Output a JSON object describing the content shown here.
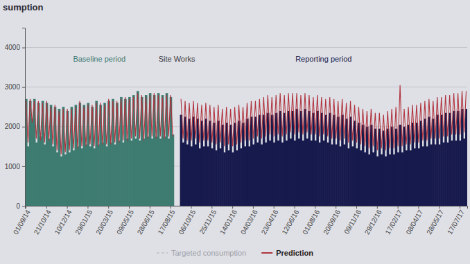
{
  "chart_data": {
    "type": "bar",
    "title": "sumption",
    "annotations": [
      "Baseline period",
      "Site Works",
      "Reporting period"
    ],
    "legend": "bottom",
    "grid": true,
    "ylim": [
      0,
      4500
    ],
    "yticks": [
      0,
      1000,
      2000,
      3000,
      4000
    ],
    "categories": [
      "01/09/14",
      null,
      null,
      null,
      null,
      null,
      null,
      null,
      null,
      null,
      "21/10/14",
      null,
      null,
      null,
      null,
      null,
      null,
      null,
      null,
      null,
      "10/12/14",
      null,
      null,
      null,
      null,
      null,
      null,
      null,
      null,
      null,
      "29/01/15",
      null,
      null,
      null,
      null,
      null,
      null,
      null,
      null,
      null,
      "20/03/15",
      null,
      null,
      null,
      null,
      null,
      null,
      null,
      null,
      null,
      "09/05/15",
      null,
      null,
      null,
      null,
      null,
      null,
      null,
      null,
      null,
      "28/06/15",
      null,
      null,
      null,
      null,
      null,
      null,
      null,
      null,
      null,
      "17/08/15",
      null,
      null,
      null,
      null,
      null,
      null,
      null,
      null,
      null,
      "06/10/15",
      null,
      null,
      null,
      null,
      null,
      null,
      null,
      null,
      null,
      "25/11/15",
      null,
      null,
      null,
      null,
      null,
      null,
      null,
      null,
      null,
      "14/01/16",
      null,
      null,
      null,
      null,
      null,
      null,
      null,
      null,
      null,
      "04/03/16",
      null,
      null,
      null,
      null,
      null,
      null,
      null,
      null,
      null,
      "23/04/16",
      null,
      null,
      null,
      null,
      null,
      null,
      null,
      null,
      null,
      "12/06/16",
      null,
      null,
      null,
      null,
      null,
      null,
      null,
      null,
      null,
      "01/08/16",
      null,
      null,
      null,
      null,
      null,
      null,
      null,
      null,
      null,
      "20/09/16",
      null,
      null,
      null,
      null,
      null,
      null,
      null,
      null,
      null,
      "09/11/16",
      null,
      null,
      null,
      null,
      null,
      null,
      null,
      null,
      null,
      "29/12/16",
      null,
      null,
      null,
      null,
      null,
      null,
      null,
      null,
      null,
      "17/02/17",
      null,
      null,
      null,
      null,
      null,
      null,
      null,
      null,
      null,
      "08/04/17",
      null,
      null,
      null,
      null,
      null,
      null,
      null,
      null,
      null,
      "28/05/17",
      null,
      null,
      null,
      null,
      null,
      null,
      null,
      null,
      null,
      "17/07/17",
      null,
      null,
      null
    ],
    "series": [
      {
        "type": "bar",
        "color": "#3e7b70",
        "values": [
          2700,
          1500,
          2650,
          2200,
          2700,
          1600,
          2600,
          1750,
          2650,
          1550,
          2600,
          1700,
          2550,
          1500,
          2500,
          1350,
          2450,
          1250,
          2500,
          1300,
          2400,
          1350,
          2500,
          1400,
          2550,
          1500,
          2600,
          1450,
          2550,
          1550,
          2600,
          1500,
          2500,
          1450,
          2650,
          1550,
          2550,
          1600,
          2600,
          1500,
          2650,
          1600,
          2700,
          1550,
          2600,
          1650,
          2750,
          1600,
          2700,
          1700,
          2750,
          1650,
          2800,
          1700,
          2900,
          1650,
          2750,
          1700,
          2800,
          1750,
          2850,
          1700,
          2800,
          1750,
          2850,
          1700,
          2800,
          1750,
          2850,
          1700,
          2750,
          1800,
          null,
          null,
          null,
          null,
          null,
          null,
          null,
          null,
          null,
          null,
          null,
          null,
          null,
          null,
          null,
          null,
          null,
          null,
          null,
          null,
          null,
          null,
          null,
          null,
          null,
          null,
          null,
          null,
          null,
          null,
          null,
          null,
          null,
          null,
          null,
          null,
          null,
          null,
          null,
          null,
          null,
          null,
          null,
          null,
          null,
          null,
          null,
          null,
          null,
          null,
          null,
          null,
          null,
          null,
          null,
          null,
          null,
          null,
          null,
          null,
          null,
          null,
          null,
          null,
          null,
          null,
          null,
          null,
          null,
          null,
          null,
          null,
          null,
          null,
          null,
          null,
          null,
          null,
          null,
          null,
          null,
          null,
          null,
          null,
          null,
          null,
          null,
          null,
          null,
          null,
          null,
          null,
          null,
          null,
          null,
          null,
          null,
          null,
          null,
          null,
          null,
          null,
          null,
          null,
          null,
          null,
          null,
          null,
          null,
          null,
          null,
          null,
          null,
          null,
          null,
          null,
          null,
          null,
          null,
          null,
          null,
          null,
          null,
          null,
          null,
          null,
          null,
          null,
          null,
          null,
          null,
          null,
          null,
          null,
          null,
          null,
          null,
          null,
          null,
          null,
          null,
          null
        ]
      },
      {
        "type": "bar",
        "color": "#171a4c",
        "values": [
          null,
          null,
          null,
          null,
          null,
          null,
          null,
          null,
          null,
          null,
          null,
          null,
          null,
          null,
          null,
          null,
          null,
          null,
          null,
          null,
          null,
          null,
          null,
          null,
          null,
          null,
          null,
          null,
          null,
          null,
          null,
          null,
          null,
          null,
          null,
          null,
          null,
          null,
          null,
          null,
          null,
          null,
          null,
          null,
          null,
          null,
          null,
          null,
          null,
          null,
          null,
          null,
          null,
          null,
          null,
          null,
          null,
          null,
          null,
          null,
          null,
          null,
          null,
          null,
          null,
          null,
          null,
          null,
          null,
          null,
          null,
          null,
          null,
          null,
          null,
          2300,
          1600,
          2250,
          1550,
          2200,
          1500,
          2250,
          1550,
          2200,
          1450,
          2150,
          1500,
          2200,
          1500,
          2150,
          1450,
          2100,
          1400,
          2150,
          1450,
          2050,
          1350,
          2100,
          1400,
          2050,
          1350,
          2100,
          1400,
          2150,
          1450,
          2100,
          1500,
          2200,
          1500,
          2250,
          1550,
          2250,
          1600,
          2300,
          1550,
          2300,
          1600,
          2350,
          1650,
          2300,
          1600,
          2350,
          1650,
          2400,
          1600,
          2350,
          1650,
          2400,
          1700,
          2400,
          1650,
          2450,
          1700,
          2400,
          1650,
          2450,
          1700,
          2400,
          1650,
          2350,
          1650,
          2400,
          1600,
          2350,
          1650,
          2300,
          1600,
          2350,
          1550,
          2300,
          1550,
          2250,
          1500,
          2300,
          1550,
          2200,
          1450,
          2250,
          1500,
          2150,
          1450,
          2100,
          1400,
          2050,
          1350,
          2000,
          1300,
          2050,
          1350,
          1950,
          1250,
          1950,
          1300,
          1900,
          1250,
          1950,
          1300,
          2000,
          1300,
          1950,
          1350,
          2050,
          1350,
          2000,
          1400,
          2050,
          1400,
          2100,
          1450,
          2100,
          1450,
          2150,
          1500,
          2200,
          1500,
          2250,
          1550,
          2200,
          1550,
          2300,
          1550,
          2300,
          1600,
          2350,
          1600,
          2350,
          1650,
          2400,
          1650,
          2400,
          1650,
          2450,
          1700,
          2450
        ]
      },
      {
        "name": "Targeted consumption",
        "type": "line",
        "line_style": "dashed",
        "color": "#c8c8c8",
        "values": [
          null,
          null,
          null,
          null,
          null,
          null,
          null,
          null,
          null,
          null,
          null,
          null,
          null,
          null,
          null,
          null,
          null,
          null,
          null,
          null,
          null,
          null,
          null,
          null,
          null,
          null,
          null,
          null,
          null,
          null,
          null,
          null,
          null,
          null,
          null,
          null,
          null,
          null,
          null,
          null,
          null,
          null,
          null,
          null,
          null,
          null,
          null,
          null,
          null,
          null,
          null,
          null,
          null,
          null,
          null,
          null,
          null,
          null,
          null,
          null,
          null,
          null,
          null,
          null,
          null,
          null,
          null,
          null,
          null,
          null,
          null,
          null,
          null,
          null,
          null,
          null,
          null,
          null,
          null,
          null,
          null,
          null,
          null,
          null,
          null,
          null,
          null,
          null,
          null,
          null,
          null,
          null,
          null,
          null,
          null,
          null,
          null,
          null,
          null,
          null,
          null,
          null,
          null,
          null,
          null,
          null,
          null,
          null,
          null,
          null,
          null,
          null,
          null,
          null,
          null,
          null,
          null,
          null,
          null,
          null,
          null,
          null,
          null,
          null,
          null,
          null,
          null,
          null,
          null,
          null,
          null,
          null,
          null,
          null,
          null,
          null,
          null,
          null,
          null,
          null,
          null,
          null,
          null,
          null,
          null,
          null,
          null,
          null,
          null,
          null,
          null,
          null,
          null,
          null,
          null,
          null,
          null,
          null,
          null,
          null,
          null,
          null,
          null,
          null,
          null,
          null,
          null,
          null,
          null,
          null,
          null,
          null,
          null,
          null,
          null,
          null,
          null,
          null,
          null,
          null,
          null,
          null,
          null,
          null,
          null,
          null,
          null,
          null,
          null,
          null,
          null,
          null,
          null,
          null,
          null,
          null,
          null,
          null,
          null,
          null,
          null,
          null,
          null,
          null,
          null,
          null,
          null,
          null,
          null,
          null,
          null,
          null,
          null,
          null
        ]
      },
      {
        "name": "Prediction",
        "type": "line",
        "line_style": "solid",
        "color": "#b0343f",
        "values": [
          2650,
          1600,
          2700,
          2100,
          2650,
          1700,
          2650,
          1650,
          2600,
          1600,
          2650,
          1650,
          2500,
          1550,
          2550,
          1400,
          2400,
          1300,
          2450,
          1350,
          2450,
          1400,
          2450,
          1450,
          2500,
          1450,
          2650,
          1500,
          2500,
          1500,
          2550,
          1550,
          2550,
          1500,
          2600,
          1500,
          2600,
          1550,
          2550,
          1550,
          2700,
          1550,
          2650,
          1600,
          2650,
          1600,
          2700,
          1650,
          2750,
          1650,
          2700,
          1700,
          2750,
          1750,
          2850,
          1700,
          2800,
          1650,
          2750,
          1700,
          2800,
          1750,
          2850,
          1700,
          2800,
          1750,
          2750,
          1700,
          2800,
          1750,
          2800,
          1750,
          null,
          null,
          null,
          2700,
          1700,
          2650,
          1650,
          2600,
          1650,
          2650,
          1700,
          2600,
          1600,
          2550,
          1650,
          2600,
          1650,
          2550,
          1600,
          2500,
          1550,
          2550,
          1600,
          2450,
          1500,
          2500,
          1550,
          2450,
          1500,
          2500,
          1550,
          2550,
          1600,
          2500,
          1650,
          2600,
          1650,
          2650,
          1700,
          2650,
          1750,
          2700,
          1700,
          2750,
          1750,
          2800,
          1800,
          2750,
          1750,
          2800,
          1800,
          2850,
          1750,
          2800,
          1800,
          2850,
          1850,
          2850,
          1800,
          2850,
          1850,
          2800,
          1800,
          2850,
          1850,
          2800,
          1800,
          2750,
          1800,
          2800,
          1750,
          2750,
          1800,
          2700,
          1750,
          2750,
          1700,
          2700,
          1700,
          2650,
          1650,
          2700,
          1700,
          2600,
          1600,
          2650,
          1650,
          2550,
          1600,
          2500,
          1550,
          2450,
          1500,
          2400,
          1450,
          2450,
          1500,
          2350,
          1400,
          2350,
          1450,
          2300,
          1400,
          2400,
          1450,
          2450,
          1450,
          2500,
          1500,
          3050,
          1500,
          2450,
          1550,
          2500,
          1550,
          2550,
          1600,
          2550,
          1600,
          2600,
          1650,
          2650,
          1650,
          2700,
          1700,
          2650,
          1700,
          2750,
          1700,
          2750,
          1750,
          2800,
          1750,
          2800,
          1800,
          2850,
          1800,
          2850,
          1800,
          2900,
          1850,
          2900
        ]
      }
    ]
  }
}
